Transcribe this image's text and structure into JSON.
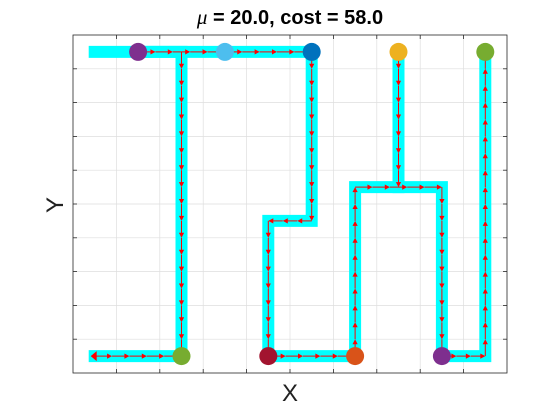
{
  "chart_data": {
    "type": "line",
    "title_symbol": "μ",
    "title_rest": " = 20.0, cost = 58.0",
    "xlabel": "X",
    "ylabel": "Y",
    "xlim": [
      0,
      10
    ],
    "ylim": [
      0,
      10
    ],
    "grid": true,
    "tick_labels_visible": false,
    "path_color": "#00FFFF",
    "arrow_color": "#FF0000",
    "path_segments": [
      [
        [
          0.5,
          0.5
        ],
        [
          2.5,
          0.5
        ],
        [
          2.5,
          9.5
        ],
        [
          0.5,
          9.5
        ]
      ],
      [
        [
          1.5,
          9.5
        ],
        [
          5.5,
          9.5
        ],
        [
          5.5,
          4.5
        ],
        [
          4.5,
          4.5
        ],
        [
          4.5,
          0.5
        ],
        [
          6.5,
          0.5
        ],
        [
          6.5,
          5.5
        ],
        [
          8.5,
          5.5
        ],
        [
          8.5,
          0.5
        ],
        [
          9.5,
          0.5
        ],
        [
          9.5,
          9.5
        ]
      ],
      [
        [
          7.5,
          9.5
        ],
        [
          7.5,
          5.5
        ]
      ]
    ],
    "arrow_segments": [
      {
        "from": [
          0.5,
          0.5
        ],
        "to": [
          2.5,
          0.5
        ]
      },
      {
        "from": [
          2.5,
          9.5
        ],
        "to": [
          2.5,
          0.5
        ]
      },
      {
        "from": [
          1.5,
          9.5
        ],
        "to": [
          5.5,
          9.5
        ]
      },
      {
        "from": [
          5.5,
          9.5
        ],
        "to": [
          5.5,
          4.5
        ]
      },
      {
        "from": [
          5.5,
          4.5
        ],
        "to": [
          4.5,
          4.5
        ]
      },
      {
        "from": [
          4.5,
          4.5
        ],
        "to": [
          4.5,
          0.5
        ]
      },
      {
        "from": [
          4.5,
          0.5
        ],
        "to": [
          6.5,
          0.5
        ]
      },
      {
        "from": [
          6.5,
          0.5
        ],
        "to": [
          6.5,
          5.5
        ]
      },
      {
        "from": [
          6.5,
          5.5
        ],
        "to": [
          8.5,
          5.5
        ]
      },
      {
        "from": [
          7.5,
          9.5
        ],
        "to": [
          7.5,
          5.5
        ]
      },
      {
        "from": [
          8.5,
          5.5
        ],
        "to": [
          8.5,
          0.5
        ]
      },
      {
        "from": [
          8.5,
          0.5
        ],
        "to": [
          9.5,
          0.5
        ]
      },
      {
        "from": [
          9.5,
          0.5
        ],
        "to": [
          9.5,
          9.5
        ]
      }
    ],
    "start_marker": {
      "x": 0.5,
      "y": 0.5
    },
    "points": [
      {
        "x": 1.5,
        "y": 9.5,
        "color": "#7E2F8E"
      },
      {
        "x": 3.5,
        "y": 9.5,
        "color": "#4DBEEE"
      },
      {
        "x": 5.5,
        "y": 9.5,
        "color": "#0072BD"
      },
      {
        "x": 7.5,
        "y": 9.5,
        "color": "#EDB120"
      },
      {
        "x": 9.5,
        "y": 9.5,
        "color": "#77AC30"
      },
      {
        "x": 2.5,
        "y": 0.5,
        "color": "#77AC30"
      },
      {
        "x": 4.5,
        "y": 0.5,
        "color": "#A2142F"
      },
      {
        "x": 6.5,
        "y": 0.5,
        "color": "#D95319"
      },
      {
        "x": 8.5,
        "y": 0.5,
        "color": "#7E2F8E"
      }
    ]
  }
}
